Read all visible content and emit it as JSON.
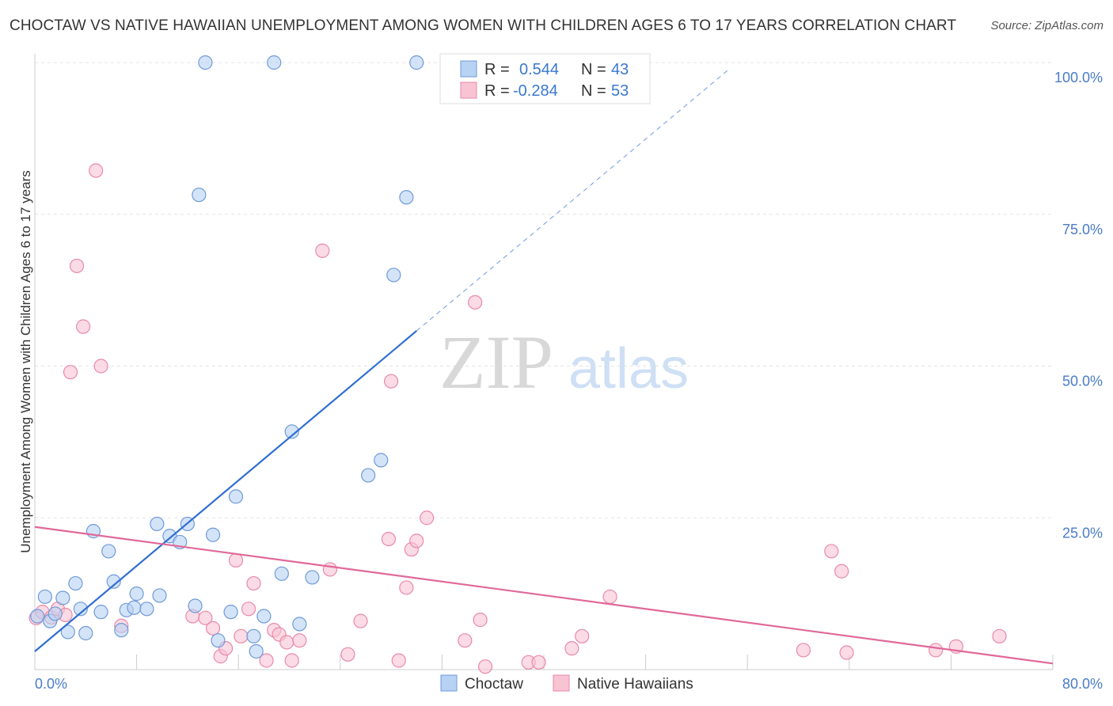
{
  "title": "CHOCTAW VS NATIVE HAWAIIAN UNEMPLOYMENT AMONG WOMEN WITH CHILDREN AGES 6 TO 17 YEARS CORRELATION CHART",
  "source": "Source: ZipAtlas.com",
  "watermark": {
    "zip": "ZIP",
    "atlas": "atlas"
  },
  "colors": {
    "choctaw_fill": "#b8d2f3",
    "choctaw_stroke": "#6f9ad8",
    "choctaw_line": "#2f6fd0",
    "hawaiian_fill": "#f8c3d3",
    "hawaiian_stroke": "#e98aa8",
    "hawaiian_line": "#e0689a",
    "tick_text": "#4a7cc7",
    "grid": "#e3e3e3"
  },
  "legend": {
    "rows": [
      {
        "r_label": "R =",
        "r_value": "0.544",
        "n_label": "N =",
        "n_value": "43"
      },
      {
        "r_label": "R =",
        "r_value": "-0.284",
        "n_label": "N =",
        "n_value": "53"
      }
    ]
  },
  "chart_data": {
    "type": "scatter",
    "title": "CHOCTAW VS NATIVE HAWAIIAN UNEMPLOYMENT AMONG WOMEN WITH CHILDREN AGES 6 TO 17 YEARS CORRELATION CHART",
    "xlabel": "",
    "ylabel": "Unemployment Among Women with Children Ages 6 to 17 years",
    "xlim": [
      0,
      80
    ],
    "ylim": [
      0,
      100
    ],
    "x_tick_labels": [
      "0.0%",
      "80.0%"
    ],
    "y_ticks": [
      25,
      50,
      75,
      100
    ],
    "y_tick_labels": [
      "25.0%",
      "50.0%",
      "75.0%",
      "100.0%"
    ],
    "grid": true,
    "legend_position": "top-center",
    "series": [
      {
        "name": "Choctaw",
        "R": 0.544,
        "N": 43,
        "trend": {
          "x0": 0,
          "y0": 3.0,
          "x1": 30,
          "y1": 55.8,
          "dash_to_x": 54.5,
          "dash_to_y": 98.8
        },
        "points": [
          [
            0.2,
            8.8
          ],
          [
            0.8,
            12.0
          ],
          [
            1.2,
            8.0
          ],
          [
            1.6,
            9.2
          ],
          [
            2.2,
            11.8
          ],
          [
            2.6,
            6.2
          ],
          [
            3.2,
            14.2
          ],
          [
            3.6,
            10.0
          ],
          [
            4.0,
            6.0
          ],
          [
            4.6,
            22.8
          ],
          [
            5.2,
            9.5
          ],
          [
            5.8,
            19.5
          ],
          [
            6.2,
            14.5
          ],
          [
            6.8,
            6.5
          ],
          [
            7.2,
            9.8
          ],
          [
            7.8,
            10.2
          ],
          [
            8.0,
            12.5
          ],
          [
            8.8,
            10.0
          ],
          [
            9.6,
            24.0
          ],
          [
            9.8,
            12.2
          ],
          [
            10.6,
            22.0
          ],
          [
            11.4,
            21.0
          ],
          [
            12.0,
            24.0
          ],
          [
            12.6,
            10.5
          ],
          [
            12.9,
            78.2
          ],
          [
            13.4,
            100.0
          ],
          [
            14.0,
            22.2
          ],
          [
            14.4,
            4.8
          ],
          [
            15.4,
            9.5
          ],
          [
            15.8,
            28.5
          ],
          [
            17.2,
            5.5
          ],
          [
            17.4,
            3.0
          ],
          [
            18.0,
            8.8
          ],
          [
            18.8,
            100.0
          ],
          [
            19.4,
            15.8
          ],
          [
            20.2,
            39.2
          ],
          [
            20.8,
            7.5
          ],
          [
            21.8,
            15.2
          ],
          [
            26.2,
            32.0
          ],
          [
            27.2,
            34.5
          ],
          [
            28.2,
            65.0
          ],
          [
            29.2,
            77.8
          ],
          [
            30.0,
            100.0
          ]
        ]
      },
      {
        "name": "Native Hawaiians",
        "R": -0.284,
        "N": 53,
        "trend": {
          "x0": 0,
          "y0": 23.5,
          "x1": 80,
          "y1": 1.0
        },
        "points": [
          [
            0.1,
            8.5
          ],
          [
            0.6,
            9.5
          ],
          [
            1.3,
            8.6
          ],
          [
            1.8,
            10.0
          ],
          [
            2.4,
            9.0
          ],
          [
            2.8,
            49.0
          ],
          [
            3.3,
            66.5
          ],
          [
            3.8,
            56.5
          ],
          [
            4.8,
            82.2
          ],
          [
            5.2,
            50.0
          ],
          [
            6.8,
            7.2
          ],
          [
            12.4,
            8.8
          ],
          [
            13.4,
            8.5
          ],
          [
            14.0,
            6.8
          ],
          [
            14.6,
            2.2
          ],
          [
            15.0,
            3.5
          ],
          [
            15.8,
            18.0
          ],
          [
            16.2,
            5.5
          ],
          [
            16.8,
            10.0
          ],
          [
            17.2,
            14.2
          ],
          [
            18.2,
            1.5
          ],
          [
            18.8,
            6.5
          ],
          [
            19.2,
            5.8
          ],
          [
            19.8,
            4.5
          ],
          [
            20.2,
            1.5
          ],
          [
            20.8,
            4.8
          ],
          [
            22.6,
            69.0
          ],
          [
            23.2,
            16.5
          ],
          [
            24.6,
            2.5
          ],
          [
            25.6,
            8.0
          ],
          [
            27.8,
            21.5
          ],
          [
            28.0,
            47.5
          ],
          [
            28.6,
            1.5
          ],
          [
            29.2,
            13.5
          ],
          [
            29.6,
            19.8
          ],
          [
            30.0,
            21.2
          ],
          [
            30.8,
            25.0
          ],
          [
            33.8,
            4.8
          ],
          [
            34.6,
            60.5
          ],
          [
            35.0,
            8.2
          ],
          [
            35.4,
            0.5
          ],
          [
            38.8,
            1.2
          ],
          [
            39.6,
            1.2
          ],
          [
            42.2,
            3.5
          ],
          [
            43.0,
            5.5
          ],
          [
            45.2,
            12.0
          ],
          [
            60.4,
            3.2
          ],
          [
            62.6,
            19.5
          ],
          [
            63.4,
            16.2
          ],
          [
            63.8,
            2.8
          ],
          [
            70.8,
            3.2
          ],
          [
            72.4,
            3.8
          ],
          [
            75.8,
            5.5
          ]
        ]
      }
    ]
  }
}
